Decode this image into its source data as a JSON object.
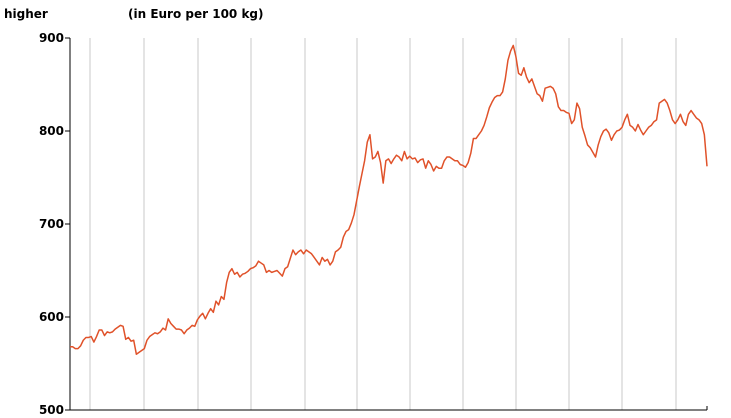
{
  "header": {
    "left_text": "higher",
    "right_text": "(in Euro per 100 kg)"
  },
  "chart_data": {
    "type": "line",
    "title": "",
    "xlabel": "",
    "ylabel": "(in Euro per 100 kg)",
    "ylim": [
      500,
      900
    ],
    "yticks": [
      500,
      600,
      700,
      800,
      900
    ],
    "grid": "vertical lines",
    "line_color": "#e0522a",
    "series": [
      {
        "values": [
          568,
          568,
          566,
          566,
          569,
          575,
          578,
          578,
          579,
          573,
          579,
          586,
          586,
          580,
          584,
          583,
          584,
          587,
          589,
          591,
          590,
          576,
          578,
          574,
          575,
          560,
          562,
          564,
          566,
          575,
          579,
          581,
          583,
          582,
          584,
          588,
          586,
          598,
          593,
          590,
          587,
          587,
          586,
          582,
          586,
          588,
          591,
          590,
          597,
          601,
          604,
          598,
          604,
          609,
          605,
          617,
          613,
          622,
          619,
          637,
          648,
          652,
          646,
          648,
          643,
          646,
          647,
          649,
          652,
          653,
          655,
          660,
          658,
          656,
          648,
          650,
          648,
          649,
          650,
          647,
          644,
          652,
          654,
          663,
          672,
          667,
          670,
          672,
          668,
          672,
          670,
          668,
          664,
          660,
          656,
          664,
          660,
          662,
          656,
          660,
          670,
          672,
          675,
          686,
          692,
          694,
          701,
          710,
          725,
          740,
          754,
          768,
          788,
          796,
          770,
          772,
          778,
          766,
          744,
          768,
          770,
          765,
          770,
          774,
          772,
          768,
          778,
          770,
          773,
          770,
          771,
          766,
          769,
          770,
          760,
          768,
          764,
          757,
          762,
          760,
          760,
          768,
          772,
          772,
          770,
          768,
          768,
          764,
          763,
          761,
          766,
          776,
          792,
          792,
          796,
          800,
          806,
          815,
          825,
          831,
          836,
          838,
          838,
          842,
          856,
          876,
          886,
          892,
          880,
          862,
          860,
          868,
          858,
          852,
          856,
          848,
          840,
          838,
          832,
          846,
          847,
          848,
          846,
          840,
          826,
          822,
          822,
          820,
          819,
          808,
          812,
          830,
          824,
          804,
          795,
          785,
          782,
          777,
          772,
          785,
          794,
          800,
          802,
          798,
          790,
          796,
          800,
          801,
          804,
          812,
          818,
          806,
          804,
          800,
          807,
          801,
          796,
          800,
          804,
          806,
          810,
          812,
          830,
          832,
          834,
          830,
          822,
          812,
          808,
          812,
          818,
          810,
          806,
          818,
          822,
          818,
          814,
          812,
          808,
          796,
          762
        ]
      }
    ]
  }
}
